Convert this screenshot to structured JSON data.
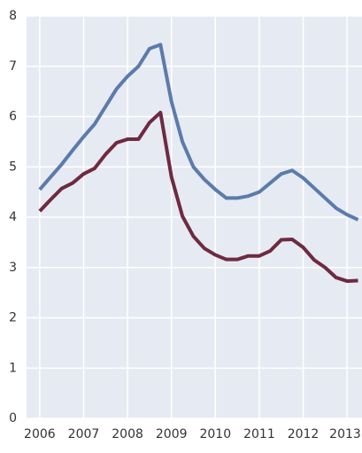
{
  "chart_data": {
    "type": "line",
    "x": [
      2006,
      2006.25,
      2006.5,
      2006.75,
      2007,
      2007.25,
      2007.5,
      2007.75,
      2008,
      2008.25,
      2008.5,
      2008.75,
      2009,
      2009.25,
      2009.5,
      2009.75,
      2010,
      2010.25,
      2010.5,
      2010.75,
      2011,
      2011.25,
      2011.5,
      2011.75,
      2012,
      2012.25,
      2012.5,
      2012.75,
      2013,
      2013.25
    ],
    "series": [
      {
        "color": "#5b7bab",
        "values": [
          4.55,
          4.8,
          5.05,
          5.33,
          5.6,
          5.85,
          6.2,
          6.55,
          6.8,
          7.0,
          7.35,
          7.43,
          6.3,
          5.5,
          5.0,
          4.75,
          4.55,
          4.38,
          4.38,
          4.42,
          4.5,
          4.68,
          4.86,
          4.93,
          4.78,
          4.58,
          4.38,
          4.18,
          4.05,
          3.95
        ]
      },
      {
        "color": "#6e2a40",
        "values": [
          4.12,
          4.35,
          4.57,
          4.68,
          4.86,
          4.97,
          5.25,
          5.48,
          5.55,
          5.55,
          5.88,
          6.08,
          4.8,
          4.02,
          3.62,
          3.38,
          3.25,
          3.16,
          3.16,
          3.23,
          3.23,
          3.33,
          3.55,
          3.56,
          3.4,
          3.15,
          3.0,
          2.8,
          2.73,
          2.74
        ]
      }
    ],
    "xlim": [
      2005.7,
      2013.34
    ],
    "xticks": [
      2006,
      2007,
      2008,
      2009,
      2010,
      2011,
      2012,
      2013
    ],
    "ylim": [
      0,
      8
    ],
    "yticks": [
      0,
      1,
      2,
      3,
      4,
      5,
      6,
      7,
      8
    ],
    "grid": true,
    "background": "#e6eaf2"
  }
}
